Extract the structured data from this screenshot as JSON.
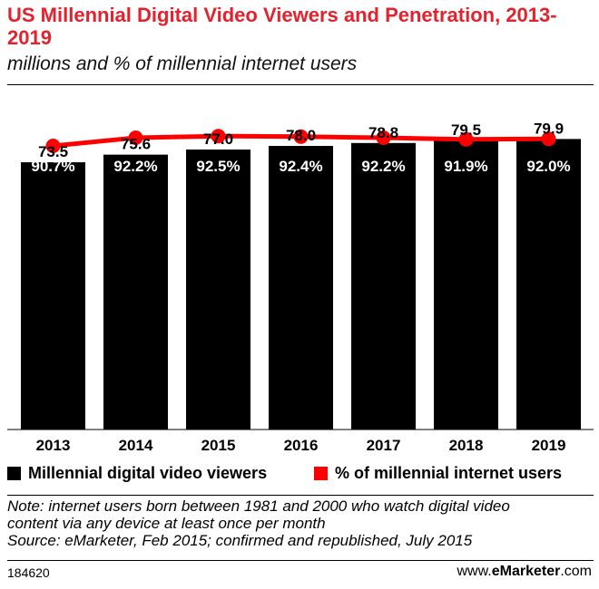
{
  "title": "US Millennial Digital Video Viewers and Penetration, 2013-2019",
  "subtitle": "millions and % of millennial internet users",
  "legend": {
    "bar_label": "Millennial digital video viewers",
    "line_label": "% of millennial internet users"
  },
  "note_lines": [
    "Note: internet users born between 1981 and 2000 who watch digital video",
    "content via any device at least once per month",
    "Source: eMarketer, Feb 2015; confirmed and republished, July 2015"
  ],
  "footer": {
    "id": "184620",
    "source_prefix": "www.",
    "source_brand": "eMarketer",
    "source_suffix": ".com"
  },
  "colors": {
    "title": "#e4212c",
    "bar": "#000000",
    "line": "#ff0000",
    "bar_label": "#000000",
    "pct_label": "#ffffff"
  },
  "chart_data": {
    "type": "bar",
    "title": "US Millennial Digital Video Viewers and Penetration, 2013-2019",
    "categories": [
      "2013",
      "2014",
      "2015",
      "2016",
      "2017",
      "2018",
      "2019"
    ],
    "series": [
      {
        "name": "Millennial digital video viewers",
        "type": "bar",
        "values": [
          73.5,
          75.6,
          77.0,
          78.0,
          78.8,
          79.5,
          79.9
        ],
        "labels": [
          "73.5",
          "75.6",
          "77.0",
          "78.0",
          "78.8",
          "79.5",
          "79.9"
        ]
      },
      {
        "name": "% of millennial internet users",
        "type": "line",
        "values": [
          90.7,
          92.2,
          92.5,
          92.4,
          92.2,
          91.9,
          92.0
        ],
        "labels": [
          "90.7%",
          "92.2%",
          "92.5%",
          "92.4%",
          "92.2%",
          "91.9%",
          "92.0%"
        ]
      }
    ],
    "ylim": [
      0,
      80
    ],
    "xlabel": "",
    "ylabel": ""
  }
}
